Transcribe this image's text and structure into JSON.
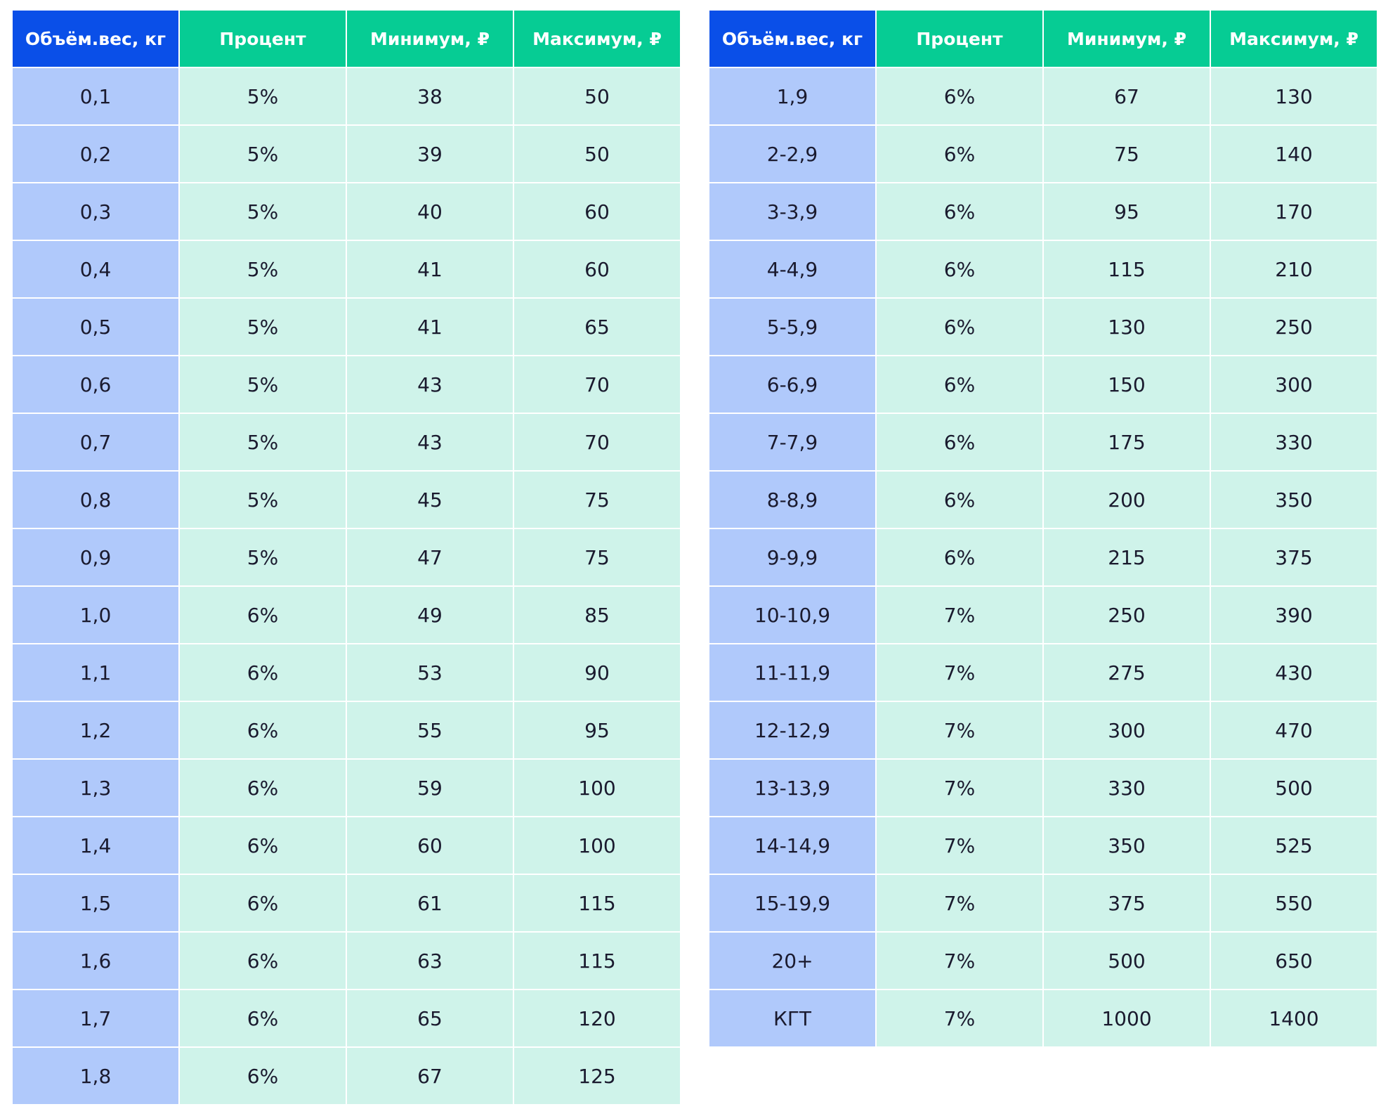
{
  "colors": {
    "weight_header_bg": "#0a4fe8",
    "value_header_bg": "#06cc94",
    "weight_cell_bg": "#b0c9fb",
    "value_cell_bg": "#cff3ea",
    "header_text": "#ffffff",
    "cell_text": "#1a1a2e"
  },
  "tables": [
    {
      "headers": [
        "Объём.вес, кг",
        "Процент",
        "Минимум, ₽",
        "Максимум, ₽"
      ],
      "rows": [
        [
          "0,1",
          "5%",
          "38",
          "50"
        ],
        [
          "0,2",
          "5%",
          "39",
          "50"
        ],
        [
          "0,3",
          "5%",
          "40",
          "60"
        ],
        [
          "0,4",
          "5%",
          "41",
          "60"
        ],
        [
          "0,5",
          "5%",
          "41",
          "65"
        ],
        [
          "0,6",
          "5%",
          "43",
          "70"
        ],
        [
          "0,7",
          "5%",
          "43",
          "70"
        ],
        [
          "0,8",
          "5%",
          "45",
          "75"
        ],
        [
          "0,9",
          "5%",
          "47",
          "75"
        ],
        [
          "1,0",
          "6%",
          "49",
          "85"
        ],
        [
          "1,1",
          "6%",
          "53",
          "90"
        ],
        [
          "1,2",
          "6%",
          "55",
          "95"
        ],
        [
          "1,3",
          "6%",
          "59",
          "100"
        ],
        [
          "1,4",
          "6%",
          "60",
          "100"
        ],
        [
          "1,5",
          "6%",
          "61",
          "115"
        ],
        [
          "1,6",
          "6%",
          "63",
          "115"
        ],
        [
          "1,7",
          "6%",
          "65",
          "120"
        ],
        [
          "1,8",
          "6%",
          "67",
          "125"
        ]
      ]
    },
    {
      "headers": [
        "Объём.вес, кг",
        "Процент",
        "Минимум, ₽",
        "Максимум, ₽"
      ],
      "rows": [
        [
          "1,9",
          "6%",
          "67",
          "130"
        ],
        [
          "2-2,9",
          "6%",
          "75",
          "140"
        ],
        [
          "3-3,9",
          "6%",
          "95",
          "170"
        ],
        [
          "4-4,9",
          "6%",
          "115",
          "210"
        ],
        [
          "5-5,9",
          "6%",
          "130",
          "250"
        ],
        [
          "6-6,9",
          "6%",
          "150",
          "300"
        ],
        [
          "7-7,9",
          "6%",
          "175",
          "330"
        ],
        [
          "8-8,9",
          "6%",
          "200",
          "350"
        ],
        [
          "9-9,9",
          "6%",
          "215",
          "375"
        ],
        [
          "10-10,9",
          "7%",
          "250",
          "390"
        ],
        [
          "11-11,9",
          "7%",
          "275",
          "430"
        ],
        [
          "12-12,9",
          "7%",
          "300",
          "470"
        ],
        [
          "13-13,9",
          "7%",
          "330",
          "500"
        ],
        [
          "14-14,9",
          "7%",
          "350",
          "525"
        ],
        [
          "15-19,9",
          "7%",
          "375",
          "550"
        ],
        [
          "20+",
          "7%",
          "500",
          "650"
        ],
        [
          "КГТ",
          "7%",
          "1000",
          "1400"
        ]
      ]
    }
  ]
}
